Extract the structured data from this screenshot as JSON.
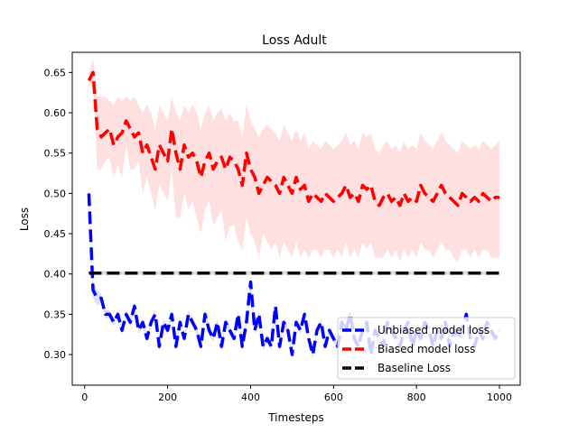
{
  "chart_data": {
    "type": "line",
    "title": "Loss Adult",
    "xlabel": "Timesteps",
    "ylabel": "Loss",
    "xlim": [
      -30,
      1050
    ],
    "ylim": [
      0.262,
      0.675
    ],
    "x_ticks": [
      0,
      200,
      400,
      600,
      800,
      1000
    ],
    "y_ticks": [
      0.3,
      0.35,
      0.4,
      0.45,
      0.5,
      0.55,
      0.6,
      0.65
    ],
    "x_tick_labels": [
      "0",
      "200",
      "400",
      "600",
      "800",
      "1000"
    ],
    "y_tick_labels": [
      "0.30",
      "0.35",
      "0.40",
      "0.45",
      "0.50",
      "0.55",
      "0.60",
      "0.65"
    ],
    "grid": false,
    "legend_position": "lower-right",
    "series": [
      {
        "name": "Unbiased model loss",
        "color": "#0000ff",
        "band_color": "#0000ff",
        "x": [
          10,
          20,
          30,
          40,
          50,
          60,
          70,
          80,
          90,
          100,
          110,
          120,
          130,
          140,
          150,
          160,
          170,
          180,
          190,
          200,
          210,
          220,
          230,
          240,
          250,
          260,
          270,
          280,
          290,
          300,
          310,
          320,
          330,
          340,
          350,
          360,
          370,
          380,
          390,
          400,
          410,
          420,
          430,
          440,
          450,
          460,
          470,
          480,
          490,
          500,
          510,
          520,
          530,
          540,
          550,
          560,
          570,
          580,
          590,
          600,
          610,
          620,
          630,
          640,
          650,
          660,
          670,
          680,
          690,
          700,
          710,
          720,
          730,
          740,
          750,
          760,
          770,
          780,
          790,
          800,
          810,
          820,
          830,
          840,
          850,
          860,
          870,
          880,
          890,
          900,
          910,
          920,
          930,
          940,
          950,
          960,
          970,
          980,
          990,
          1000
        ],
        "y": [
          0.5,
          0.38,
          0.37,
          0.37,
          0.35,
          0.35,
          0.34,
          0.35,
          0.33,
          0.35,
          0.34,
          0.36,
          0.33,
          0.34,
          0.32,
          0.34,
          0.35,
          0.31,
          0.34,
          0.33,
          0.35,
          0.31,
          0.34,
          0.32,
          0.35,
          0.34,
          0.33,
          0.31,
          0.35,
          0.33,
          0.32,
          0.34,
          0.31,
          0.34,
          0.33,
          0.32,
          0.35,
          0.31,
          0.34,
          0.39,
          0.33,
          0.35,
          0.31,
          0.32,
          0.31,
          0.36,
          0.31,
          0.34,
          0.33,
          0.3,
          0.34,
          0.33,
          0.35,
          0.32,
          0.3,
          0.33,
          0.34,
          0.31,
          0.33,
          0.32,
          0.31,
          0.34,
          0.33,
          0.35,
          0.32,
          0.31,
          0.33,
          0.34,
          0.3,
          0.33,
          0.32,
          0.31,
          0.34,
          0.33,
          0.32,
          0.31,
          0.33,
          0.34,
          0.31,
          0.33,
          0.32,
          0.34,
          0.33,
          0.31,
          0.33,
          0.32,
          0.34,
          0.31,
          0.33,
          0.32,
          0.33,
          0.35,
          0.32,
          0.31,
          0.33,
          0.32,
          0.34,
          0.33,
          0.32,
          0.33
        ],
        "y_lower": [
          0.49,
          0.37,
          0.36,
          0.365,
          0.345,
          0.345,
          0.335,
          0.345,
          0.325,
          0.345,
          0.335,
          0.355,
          0.325,
          0.335,
          0.315,
          0.335,
          0.345,
          0.305,
          0.335,
          0.325,
          0.345,
          0.305,
          0.335,
          0.315,
          0.345,
          0.335,
          0.325,
          0.305,
          0.345,
          0.325,
          0.315,
          0.335,
          0.305,
          0.335,
          0.325,
          0.315,
          0.345,
          0.305,
          0.335,
          0.38,
          0.325,
          0.345,
          0.305,
          0.315,
          0.305,
          0.355,
          0.305,
          0.335,
          0.325,
          0.295,
          0.335,
          0.325,
          0.345,
          0.315,
          0.295,
          0.325,
          0.335,
          0.305,
          0.325,
          0.315,
          0.305,
          0.335,
          0.325,
          0.345,
          0.315,
          0.305,
          0.325,
          0.335,
          0.295,
          0.325,
          0.315,
          0.305,
          0.335,
          0.325,
          0.315,
          0.305,
          0.325,
          0.335,
          0.305,
          0.325,
          0.315,
          0.335,
          0.325,
          0.305,
          0.325,
          0.315,
          0.335,
          0.305,
          0.325,
          0.315,
          0.325,
          0.345,
          0.315,
          0.305,
          0.325,
          0.315,
          0.335,
          0.325,
          0.315,
          0.325
        ],
        "y_upper": [
          0.51,
          0.39,
          0.38,
          0.375,
          0.355,
          0.355,
          0.345,
          0.355,
          0.335,
          0.355,
          0.345,
          0.365,
          0.335,
          0.345,
          0.325,
          0.345,
          0.355,
          0.315,
          0.345,
          0.335,
          0.355,
          0.315,
          0.345,
          0.325,
          0.355,
          0.345,
          0.335,
          0.315,
          0.355,
          0.335,
          0.325,
          0.345,
          0.315,
          0.345,
          0.335,
          0.325,
          0.355,
          0.315,
          0.345,
          0.4,
          0.335,
          0.355,
          0.315,
          0.325,
          0.315,
          0.365,
          0.315,
          0.345,
          0.335,
          0.305,
          0.345,
          0.335,
          0.355,
          0.325,
          0.305,
          0.335,
          0.345,
          0.315,
          0.335,
          0.325,
          0.315,
          0.345,
          0.335,
          0.355,
          0.325,
          0.315,
          0.335,
          0.345,
          0.305,
          0.335,
          0.325,
          0.315,
          0.345,
          0.335,
          0.325,
          0.315,
          0.335,
          0.345,
          0.315,
          0.335,
          0.325,
          0.345,
          0.335,
          0.315,
          0.335,
          0.325,
          0.345,
          0.315,
          0.335,
          0.325,
          0.335,
          0.355,
          0.325,
          0.315,
          0.335,
          0.325,
          0.345,
          0.335,
          0.325,
          0.335
        ]
      },
      {
        "name": "Biased model loss",
        "color": "#ff0000",
        "band_color": "#ff0000",
        "x": [
          10,
          20,
          30,
          40,
          50,
          60,
          70,
          80,
          90,
          100,
          110,
          120,
          130,
          140,
          150,
          160,
          170,
          180,
          190,
          200,
          210,
          220,
          230,
          240,
          250,
          260,
          270,
          280,
          290,
          300,
          310,
          320,
          330,
          340,
          350,
          360,
          370,
          380,
          390,
          400,
          410,
          420,
          430,
          440,
          450,
          460,
          470,
          480,
          490,
          500,
          510,
          520,
          530,
          540,
          550,
          560,
          570,
          580,
          590,
          600,
          610,
          620,
          630,
          640,
          650,
          660,
          670,
          680,
          690,
          700,
          710,
          720,
          730,
          740,
          750,
          760,
          770,
          780,
          790,
          800,
          810,
          820,
          830,
          840,
          850,
          860,
          870,
          880,
          890,
          900,
          910,
          920,
          930,
          940,
          950,
          960,
          970,
          980,
          990,
          1000
        ],
        "y": [
          0.64,
          0.65,
          0.58,
          0.57,
          0.575,
          0.58,
          0.56,
          0.57,
          0.575,
          0.59,
          0.58,
          0.57,
          0.575,
          0.55,
          0.56,
          0.545,
          0.53,
          0.56,
          0.55,
          0.54,
          0.58,
          0.55,
          0.53,
          0.56,
          0.545,
          0.55,
          0.54,
          0.52,
          0.54,
          0.55,
          0.53,
          0.54,
          0.545,
          0.53,
          0.545,
          0.54,
          0.53,
          0.51,
          0.55,
          0.53,
          0.52,
          0.5,
          0.51,
          0.52,
          0.515,
          0.51,
          0.5,
          0.52,
          0.51,
          0.5,
          0.52,
          0.505,
          0.51,
          0.49,
          0.5,
          0.495,
          0.49,
          0.5,
          0.495,
          0.49,
          0.495,
          0.5,
          0.51,
          0.495,
          0.5,
          0.49,
          0.51,
          0.505,
          0.51,
          0.49,
          0.485,
          0.495,
          0.5,
          0.49,
          0.495,
          0.485,
          0.5,
          0.49,
          0.495,
          0.49,
          0.51,
          0.5,
          0.495,
          0.49,
          0.5,
          0.51,
          0.5,
          0.495,
          0.49,
          0.485,
          0.5,
          0.495,
          0.49,
          0.495,
          0.49,
          0.5,
          0.495,
          0.49,
          0.495,
          0.495
        ],
        "y_lower": [
          0.63,
          0.64,
          0.53,
          0.53,
          0.54,
          0.545,
          0.52,
          0.535,
          0.52,
          0.56,
          0.53,
          0.53,
          0.54,
          0.5,
          0.52,
          0.5,
          0.48,
          0.51,
          0.5,
          0.49,
          0.53,
          0.47,
          0.47,
          0.5,
          0.48,
          0.49,
          0.47,
          0.45,
          0.48,
          0.49,
          0.46,
          0.47,
          0.48,
          0.44,
          0.46,
          0.46,
          0.44,
          0.43,
          0.47,
          0.45,
          0.44,
          0.42,
          0.45,
          0.44,
          0.43,
          0.44,
          0.42,
          0.44,
          0.43,
          0.42,
          0.44,
          0.42,
          0.43,
          0.42,
          0.43,
          0.43,
          0.42,
          0.43,
          0.43,
          0.42,
          0.43,
          0.42,
          0.44,
          0.42,
          0.43,
          0.42,
          0.44,
          0.43,
          0.44,
          0.42,
          0.42,
          0.42,
          0.43,
          0.42,
          0.43,
          0.415,
          0.43,
          0.42,
          0.43,
          0.42,
          0.44,
          0.43,
          0.43,
          0.42,
          0.43,
          0.44,
          0.43,
          0.43,
          0.42,
          0.415,
          0.43,
          0.43,
          0.42,
          0.43,
          0.42,
          0.43,
          0.43,
          0.42,
          0.42,
          0.42
        ],
        "y_upper": [
          0.65,
          0.668,
          0.62,
          0.62,
          0.62,
          0.615,
          0.61,
          0.62,
          0.615,
          0.62,
          0.615,
          0.62,
          0.61,
          0.6,
          0.61,
          0.6,
          0.58,
          0.61,
          0.6,
          0.59,
          0.62,
          0.6,
          0.59,
          0.61,
          0.6,
          0.61,
          0.6,
          0.58,
          0.6,
          0.61,
          0.59,
          0.6,
          0.605,
          0.59,
          0.6,
          0.59,
          0.59,
          0.57,
          0.61,
          0.59,
          0.58,
          0.57,
          0.58,
          0.585,
          0.58,
          0.575,
          0.565,
          0.585,
          0.575,
          0.565,
          0.58,
          0.565,
          0.575,
          0.555,
          0.565,
          0.56,
          0.555,
          0.565,
          0.56,
          0.555,
          0.56,
          0.565,
          0.575,
          0.56,
          0.565,
          0.555,
          0.575,
          0.57,
          0.575,
          0.555,
          0.55,
          0.56,
          0.565,
          0.555,
          0.56,
          0.55,
          0.565,
          0.555,
          0.56,
          0.555,
          0.575,
          0.565,
          0.56,
          0.555,
          0.565,
          0.575,
          0.565,
          0.56,
          0.555,
          0.55,
          0.565,
          0.56,
          0.555,
          0.56,
          0.555,
          0.565,
          0.56,
          0.555,
          0.56,
          0.565
        ]
      },
      {
        "name": "Baseline Loss",
        "color": "#000000",
        "band_color": "#999999",
        "x": [
          10,
          1000
        ],
        "y": [
          0.401,
          0.401
        ],
        "y_lower": [
          0.399,
          0.399
        ],
        "y_upper": [
          0.403,
          0.403
        ]
      }
    ]
  }
}
